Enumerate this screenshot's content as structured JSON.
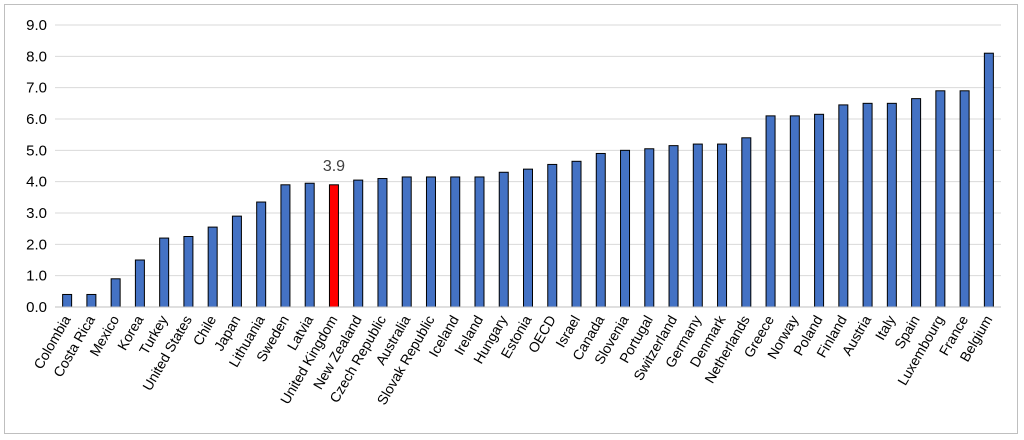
{
  "chart_data": {
    "type": "bar",
    "title": "",
    "xlabel": "",
    "ylabel": "",
    "ylim": [
      0,
      9
    ],
    "yticks": [
      "0.0",
      "1.0",
      "2.0",
      "3.0",
      "4.0",
      "5.0",
      "6.0",
      "7.0",
      "8.0",
      "9.0"
    ],
    "grid": true,
    "legend": "none",
    "categories": [
      "Colombia",
      "Costa Rica",
      "Mexico",
      "Korea",
      "Turkey",
      "United States",
      "Chile",
      "Japan",
      "Lithuania",
      "Sweden",
      "Latvia",
      "United Kingdom",
      "New Zealand",
      "Czech Republic",
      "Australia",
      "Slovak Republic",
      "Iceland",
      "Ireland",
      "Hungary",
      "Estonia",
      "OECD",
      "Israel",
      "Canada",
      "Slovenia",
      "Portugal",
      "Switzerland",
      "Germany",
      "Denmark",
      "Netherlands",
      "Greece",
      "Norway",
      "Poland",
      "Finland",
      "Austria",
      "Italy",
      "Spain",
      "Luxembourg",
      "France",
      "Belgium"
    ],
    "values": [
      0.4,
      0.4,
      0.9,
      1.5,
      2.2,
      2.25,
      2.55,
      2.9,
      3.35,
      3.9,
      3.95,
      3.9,
      4.05,
      4.1,
      4.15,
      4.15,
      4.15,
      4.15,
      4.3,
      4.4,
      4.55,
      4.65,
      4.9,
      5.0,
      5.05,
      5.15,
      5.2,
      5.2,
      5.4,
      6.1,
      6.1,
      6.15,
      6.45,
      6.5,
      6.5,
      6.65,
      6.9,
      6.9,
      8.1
    ],
    "highlight": {
      "category": "United Kingdom",
      "color": "#ff0000",
      "label": "3.9"
    },
    "bar_color": "#4472c4",
    "bar_outline": "#000000"
  }
}
